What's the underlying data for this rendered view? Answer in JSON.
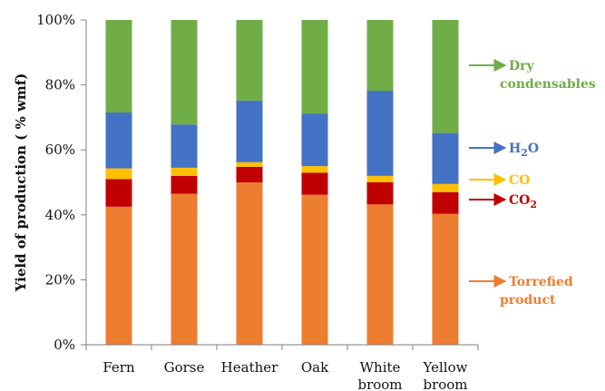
{
  "chart_data": {
    "type": "bar",
    "stacked": true,
    "title": "",
    "xlabel": "",
    "ylabel": "Yield of production ( % wmf)",
    "ylim": [
      0,
      100
    ],
    "yticks": [
      "0%",
      "20%",
      "40%",
      "60%",
      "80%",
      "100%"
    ],
    "categories": [
      [
        "Fern"
      ],
      [
        "Gorse"
      ],
      [
        "Heather"
      ],
      [
        "Oak"
      ],
      [
        "White",
        "broom"
      ],
      [
        "Yellow",
        "broom"
      ]
    ],
    "series": [
      {
        "name": [
          "Torrefied",
          "product"
        ],
        "color": "#ed7d31",
        "values": [
          42.5,
          46.5,
          50.0,
          46.2,
          43.2,
          40.3
        ]
      },
      {
        "name": [
          "CO",
          "₂"
        ],
        "color": "#c00000",
        "values": [
          8.5,
          5.5,
          4.8,
          6.8,
          6.8,
          6.7
        ]
      },
      {
        "name": [
          "CO"
        ],
        "color": "#ffc000",
        "values": [
          3.3,
          2.5,
          1.4,
          2.0,
          2.0,
          2.5
        ]
      },
      {
        "name": [
          "H",
          "₂",
          "O"
        ],
        "color": "#4472c4",
        "values": [
          17.2,
          13.3,
          19.0,
          16.2,
          26.2,
          15.7
        ]
      },
      {
        "name": [
          "Dry",
          "condensables"
        ],
        "color": "#70ad47",
        "values": [
          28.5,
          32.2,
          24.8,
          28.8,
          21.8,
          34.8
        ]
      }
    ],
    "legend": "right-inline",
    "grid": false
  }
}
